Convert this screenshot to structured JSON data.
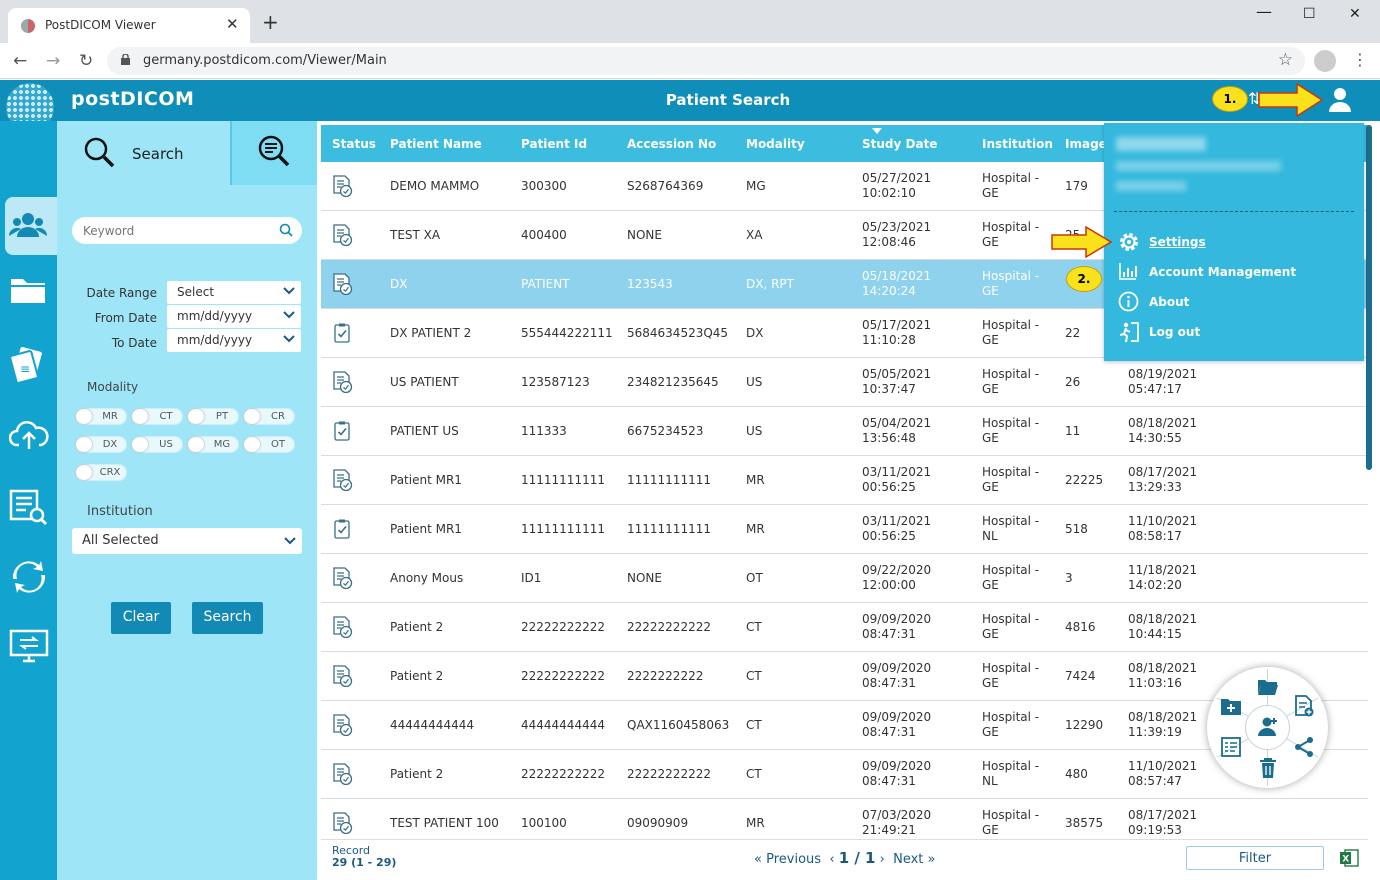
{
  "browser": {
    "tab_title": "PostDICOM Viewer",
    "url": "germany.postdicom.com/Viewer/Main"
  },
  "header": {
    "logo": "postDICOM",
    "title": "Patient Search"
  },
  "search_panel": {
    "tab_label": "Search",
    "keyword_placeholder": "Keyword",
    "date_range_label": "Date Range",
    "date_range_value": "Select",
    "from_date_label": "From Date",
    "from_date_value": "mm/dd/yyyy",
    "to_date_label": "To Date",
    "to_date_value": "mm/dd/yyyy",
    "modality_label": "Modality",
    "modalities": [
      "MR",
      "CT",
      "PT",
      "CR",
      "DX",
      "US",
      "MG",
      "OT",
      "CRX"
    ],
    "institution_label": "Institution",
    "institution_value": "All Selected",
    "clear_label": "Clear",
    "search_label": "Search"
  },
  "table": {
    "columns": [
      "Status",
      "Patient Name",
      "Patient Id",
      "Accession No",
      "Modality",
      "Study Date",
      "Institution",
      "Images"
    ],
    "rows": [
      {
        "name": "DEMO MAMMO",
        "pid": "300300",
        "acc": "S268764369",
        "mod": "MG",
        "date": "05/27/2021",
        "time": "10:02:10",
        "inst1": "Hospital -",
        "inst2": "GE",
        "images": "179",
        "d2": "",
        "t2": "",
        "icon": "report"
      },
      {
        "name": "TEST XA",
        "pid": "400400",
        "acc": "NONE",
        "mod": "XA",
        "date": "05/23/2021",
        "time": "12:08:46",
        "inst1": "Hospital -",
        "inst2": "GE",
        "images": "25",
        "d2": "",
        "t2": "",
        "icon": "report"
      },
      {
        "name": "DX",
        "pid": "PATIENT",
        "acc": "123543",
        "mod": "DX, RPT",
        "date": "05/18/2021",
        "time": "14:20:24",
        "inst1": "Hospital -",
        "inst2": "GE",
        "images": "",
        "d2": "",
        "t2": "",
        "icon": "report"
      },
      {
        "name": "DX PATIENT 2",
        "pid": "555444222111",
        "acc": "5684634523Q45",
        "mod": "DX",
        "date": "05/17/2021",
        "time": "11:10:28",
        "inst1": "Hospital -",
        "inst2": "GE",
        "images": "22",
        "d2": "",
        "t2": "",
        "icon": "check"
      },
      {
        "name": "US PATIENT",
        "pid": "123587123",
        "acc": "234821235645",
        "mod": "US",
        "date": "05/05/2021",
        "time": "10:37:47",
        "inst1": "Hospital -",
        "inst2": "GE",
        "images": "26",
        "d2": "08/19/2021",
        "t2": "05:47:17",
        "icon": "report"
      },
      {
        "name": "PATIENT US",
        "pid": "111333",
        "acc": "6675234523",
        "mod": "US",
        "date": "05/04/2021",
        "time": "13:56:48",
        "inst1": "Hospital -",
        "inst2": "GE",
        "images": "11",
        "d2": "08/18/2021",
        "t2": "14:30:55",
        "icon": "check"
      },
      {
        "name": "Patient MR1",
        "pid": "11111111111",
        "acc": "11111111111",
        "mod": "MR",
        "date": "03/11/2021",
        "time": "00:56:25",
        "inst1": "Hospital -",
        "inst2": "GE",
        "images": "22225",
        "d2": "08/17/2021",
        "t2": "13:29:33",
        "icon": "report"
      },
      {
        "name": "Patient MR1",
        "pid": "11111111111",
        "acc": "11111111111",
        "mod": "MR",
        "date": "03/11/2021",
        "time": "00:56:25",
        "inst1": "Hospital -",
        "inst2": "NL",
        "images": "518",
        "d2": "11/10/2021",
        "t2": "08:58:17",
        "icon": "check"
      },
      {
        "name": "Anony Mous",
        "pid": "ID1",
        "acc": "NONE",
        "mod": "OT",
        "date": "09/22/2020",
        "time": "12:00:00",
        "inst1": "Hospital -",
        "inst2": "GE",
        "images": "3",
        "d2": "11/18/2021",
        "t2": "14:02:20",
        "icon": "report"
      },
      {
        "name": "Patient 2",
        "pid": "22222222222",
        "acc": "22222222222",
        "mod": "CT",
        "date": "09/09/2020",
        "time": "08:47:31",
        "inst1": "Hospital -",
        "inst2": "GE",
        "images": "4816",
        "d2": "08/18/2021",
        "t2": "10:44:15",
        "icon": "report"
      },
      {
        "name": "Patient 2",
        "pid": "22222222222",
        "acc": "2222222222",
        "mod": "CT",
        "date": "09/09/2020",
        "time": "08:47:31",
        "inst1": "Hospital -",
        "inst2": "GE",
        "images": "7424",
        "d2": "08/18/2021",
        "t2": "11:03:16",
        "icon": "report"
      },
      {
        "name": "44444444444",
        "pid": "44444444444",
        "acc": "QAX1160458063",
        "mod": "CT",
        "date": "09/09/2020",
        "time": "08:47:31",
        "inst1": "Hospital -",
        "inst2": "GE",
        "images": "12290",
        "d2": "08/18/2021",
        "t2": "11:39:19",
        "icon": "report"
      },
      {
        "name": "Patient 2",
        "pid": "22222222222",
        "acc": "22222222222",
        "mod": "CT",
        "date": "09/09/2020",
        "time": "08:47:31",
        "inst1": "Hospital -",
        "inst2": "NL",
        "images": "480",
        "d2": "11/10/2021",
        "t2": "08:57:47",
        "icon": "report"
      },
      {
        "name": "TEST PATIENT 100",
        "pid": "100100",
        "acc": "09090909",
        "mod": "MR",
        "date": "07/03/2020",
        "time": "21:49:21",
        "inst1": "Hospital -",
        "inst2": "GE",
        "images": "38575",
        "d2": "08/17/2021",
        "t2": "09:19:53",
        "icon": "report"
      }
    ]
  },
  "footer": {
    "record_label": "Record",
    "record_value": "29 (1 - 29)",
    "previous": "Previous",
    "page": "1 / 1",
    "next": "Next",
    "filter": "Filter"
  },
  "user_menu": {
    "items": [
      {
        "label": "Settings",
        "icon": "gear-icon"
      },
      {
        "label": "Account Management",
        "icon": "chart-icon"
      },
      {
        "label": "About",
        "icon": "info-icon"
      },
      {
        "label": "Log out",
        "icon": "logout-icon"
      }
    ]
  },
  "annotations": {
    "step1": "1.",
    "step2": "2."
  },
  "colors": {
    "header": "#0e8eb8",
    "rail": "#13a3cf",
    "panel": "#9ee6f7",
    "table_header": "#3cbde0",
    "selected_row": "#8fd2ee",
    "annotation_yellow": "#f9e21c"
  }
}
